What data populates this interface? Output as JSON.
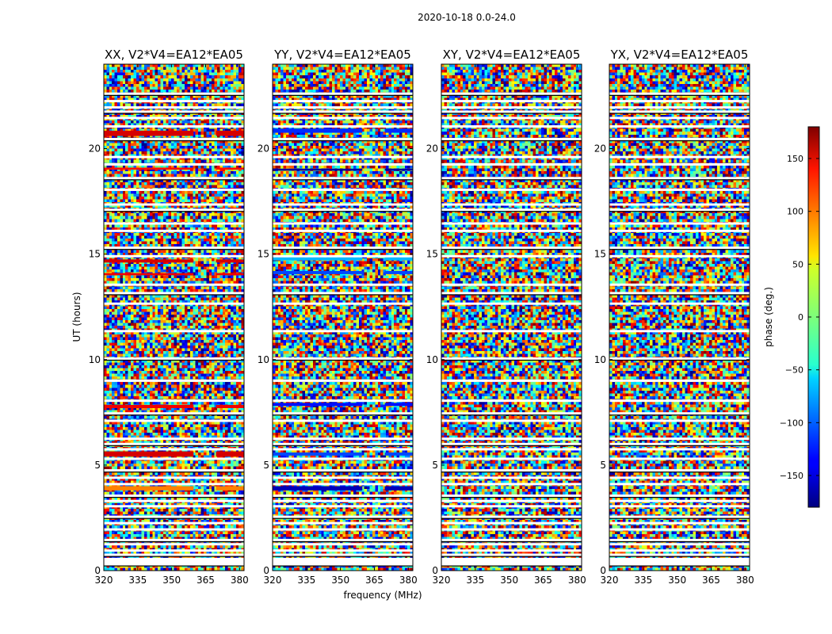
{
  "figure": {
    "suptitle": "2020-10-18 0.0-24.0"
  },
  "chart_data": {
    "type": "heatmap",
    "title": "2020-10-18 0.0-24.0",
    "xlabel": "frequency (MHz)",
    "ylabel": "UT (hours)",
    "xlim": [
      320,
      382
    ],
    "ylim": [
      0,
      24
    ],
    "x_ticks": [
      320,
      335,
      350,
      365,
      380
    ],
    "y_ticks": [
      0,
      5,
      10,
      15,
      20
    ],
    "panels": [
      {
        "name": "XX",
        "title": "XX, V2*V4=EA12*EA05",
        "calibrator_bands": [
          {
            "t0": 20.6,
            "t1": 20.85,
            "phase": 150
          },
          {
            "t0": 19.0,
            "t1": 19.1,
            "phase": 130
          },
          {
            "t0": 14.6,
            "t1": 14.75,
            "phase": 150
          },
          {
            "t0": 14.0,
            "t1": 14.1,
            "phase": 140
          },
          {
            "t0": 7.7,
            "t1": 7.85,
            "phase": 140
          },
          {
            "t0": 5.4,
            "t1": 5.65,
            "phase": 150
          },
          {
            "t0": 3.8,
            "t1": 4.0,
            "phase": 90
          }
        ]
      },
      {
        "name": "YY",
        "title": "YY, V2*V4=EA12*EA05",
        "calibrator_bands": [
          {
            "t0": 20.75,
            "t1": 20.95,
            "phase": -120
          },
          {
            "t0": 18.95,
            "t1": 19.05,
            "phase": -170
          },
          {
            "t0": 14.7,
            "t1": 14.85,
            "phase": -70
          },
          {
            "t0": 14.05,
            "t1": 14.2,
            "phase": -110
          },
          {
            "t0": 7.8,
            "t1": 7.95,
            "phase": -130
          },
          {
            "t0": 5.45,
            "t1": 5.6,
            "phase": -110
          },
          {
            "t0": 3.8,
            "t1": 4.0,
            "phase": -160
          }
        ]
      },
      {
        "name": "XY",
        "title": "XY, V2*V4=EA12*EA05",
        "calibrator_bands": []
      },
      {
        "name": "YX",
        "title": "YX, V2*V4=EA12*EA05",
        "calibrator_bands": []
      }
    ],
    "flagged_times": [
      0.3,
      0.45,
      0.55,
      0.75,
      0.95,
      1.25,
      1.45,
      1.95,
      2.25,
      2.55,
      3.05,
      3.3,
      3.55,
      4.1,
      4.4,
      4.75,
      5.3,
      5.75,
      6.0,
      6.25,
      7.1,
      7.45,
      8.05,
      9.0,
      10.05,
      11.35,
      12.65,
      13.15,
      13.55,
      14.9,
      15.3,
      16.1,
      16.45,
      17.1,
      17.35,
      18.05,
      18.6,
      19.25,
      19.6,
      20.45,
      21.05,
      21.45,
      21.75,
      21.95,
      22.25,
      22.6
    ],
    "colorbar": {
      "label": "phase (deg.)",
      "range": [
        -180,
        180
      ],
      "ticks": [
        150,
        100,
        50,
        0,
        -50,
        -100,
        -150
      ],
      "tick_labels": [
        "150",
        "100",
        "50",
        "0",
        "−50",
        "−100",
        "−150"
      ],
      "colormap": "jet"
    }
  }
}
